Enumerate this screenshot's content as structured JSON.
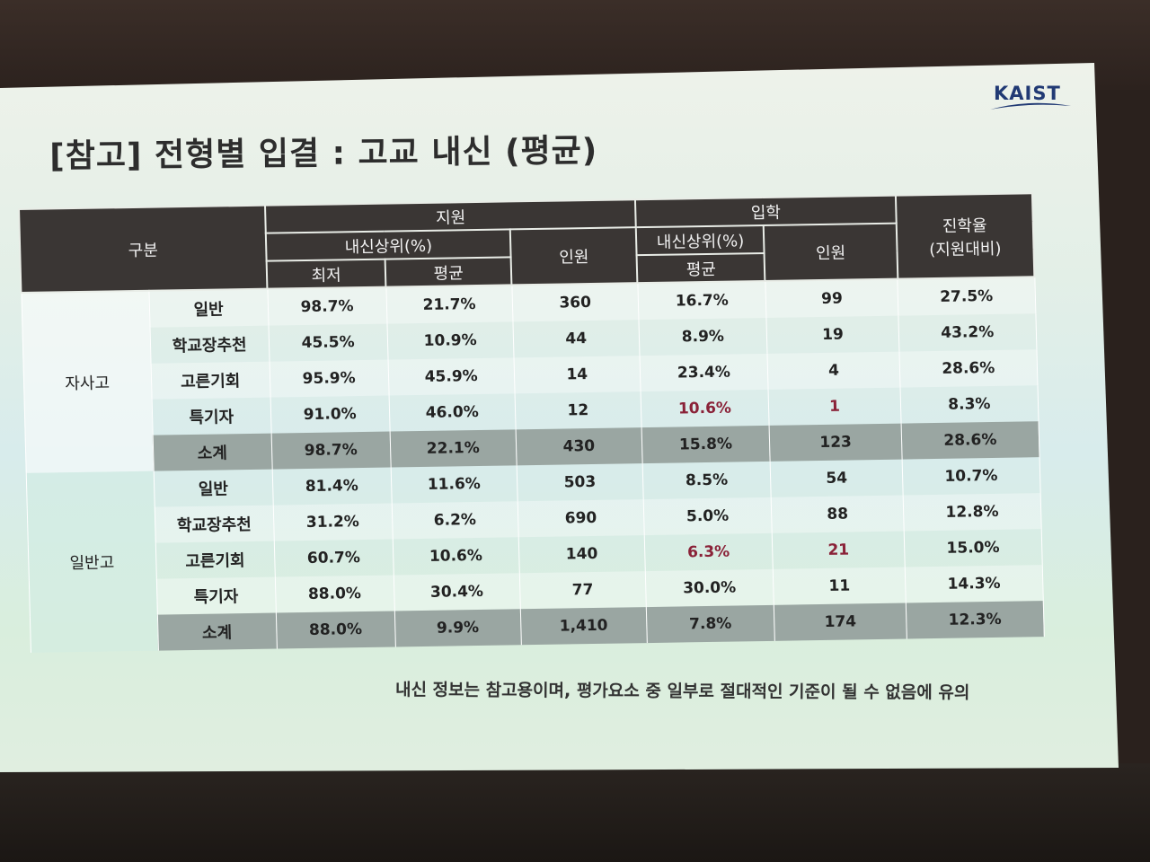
{
  "slide": {
    "logo": "KAIST",
    "title": "[참고] 전형별 입결 : 고교 내신 (평균)",
    "note": "내신 정보는 참고용이며, 평가요소 중 일부로 절대적인 기준이 될 수 없음에 유의"
  },
  "table": {
    "header": {
      "category": "구분",
      "apply": "지원",
      "admit": "입학",
      "rate": "진학율",
      "rate_sub": "(지원대비)",
      "grade_pct": "내신상위(%)",
      "grade_pct_admit": "내신상위(%)",
      "min": "최저",
      "avg": "평균",
      "avg_admit": "평균",
      "count": "인원",
      "count_admit": "인원"
    },
    "groups": [
      {
        "name": "자사고",
        "rows": [
          {
            "type": "일반",
            "min": "98.7%",
            "avg": "21.7%",
            "count": "360",
            "admit_avg": "16.7%",
            "admit_count": "99",
            "rate": "27.5%"
          },
          {
            "type": "학교장추천",
            "min": "45.5%",
            "avg": "10.9%",
            "count": "44",
            "admit_avg": "8.9%",
            "admit_count": "19",
            "rate": "43.2%"
          },
          {
            "type": "고른기회",
            "min": "95.9%",
            "avg": "45.9%",
            "count": "14",
            "admit_avg": "23.4%",
            "admit_count": "4",
            "rate": "28.6%"
          },
          {
            "type": "특기자",
            "min": "91.0%",
            "avg": "46.0%",
            "count": "12",
            "admit_avg": "10.6%",
            "admit_count": "1",
            "rate": "8.3%"
          },
          {
            "type": "소계",
            "min": "98.7%",
            "avg": "22.1%",
            "count": "430",
            "admit_avg": "15.8%",
            "admit_count": "123",
            "rate": "28.6%"
          }
        ]
      },
      {
        "name": "일반고",
        "rows": [
          {
            "type": "일반",
            "min": "81.4%",
            "avg": "11.6%",
            "count": "503",
            "admit_avg": "8.5%",
            "admit_count": "54",
            "rate": "10.7%"
          },
          {
            "type": "학교장추천",
            "min": "31.2%",
            "avg": "6.2%",
            "count": "690",
            "admit_avg": "5.0%",
            "admit_count": "88",
            "rate": "12.8%"
          },
          {
            "type": "고른기회",
            "min": "60.7%",
            "avg": "10.6%",
            "count": "140",
            "admit_avg": "6.3%",
            "admit_count": "21",
            "rate": "15.0%"
          },
          {
            "type": "특기자",
            "min": "88.0%",
            "avg": "30.4%",
            "count": "77",
            "admit_avg": "30.0%",
            "admit_count": "11",
            "rate": "14.3%"
          },
          {
            "type": "소계",
            "min": "88.0%",
            "avg": "9.9%",
            "count": "1,410",
            "admit_avg": "7.8%",
            "admit_count": "174",
            "rate": "12.3%"
          }
        ]
      }
    ]
  },
  "colors": {
    "header_bg": "#3a3634",
    "subtotal_bg": "#9aa6a2",
    "highlight_text": "#8a2238",
    "logo": "#213a74"
  }
}
